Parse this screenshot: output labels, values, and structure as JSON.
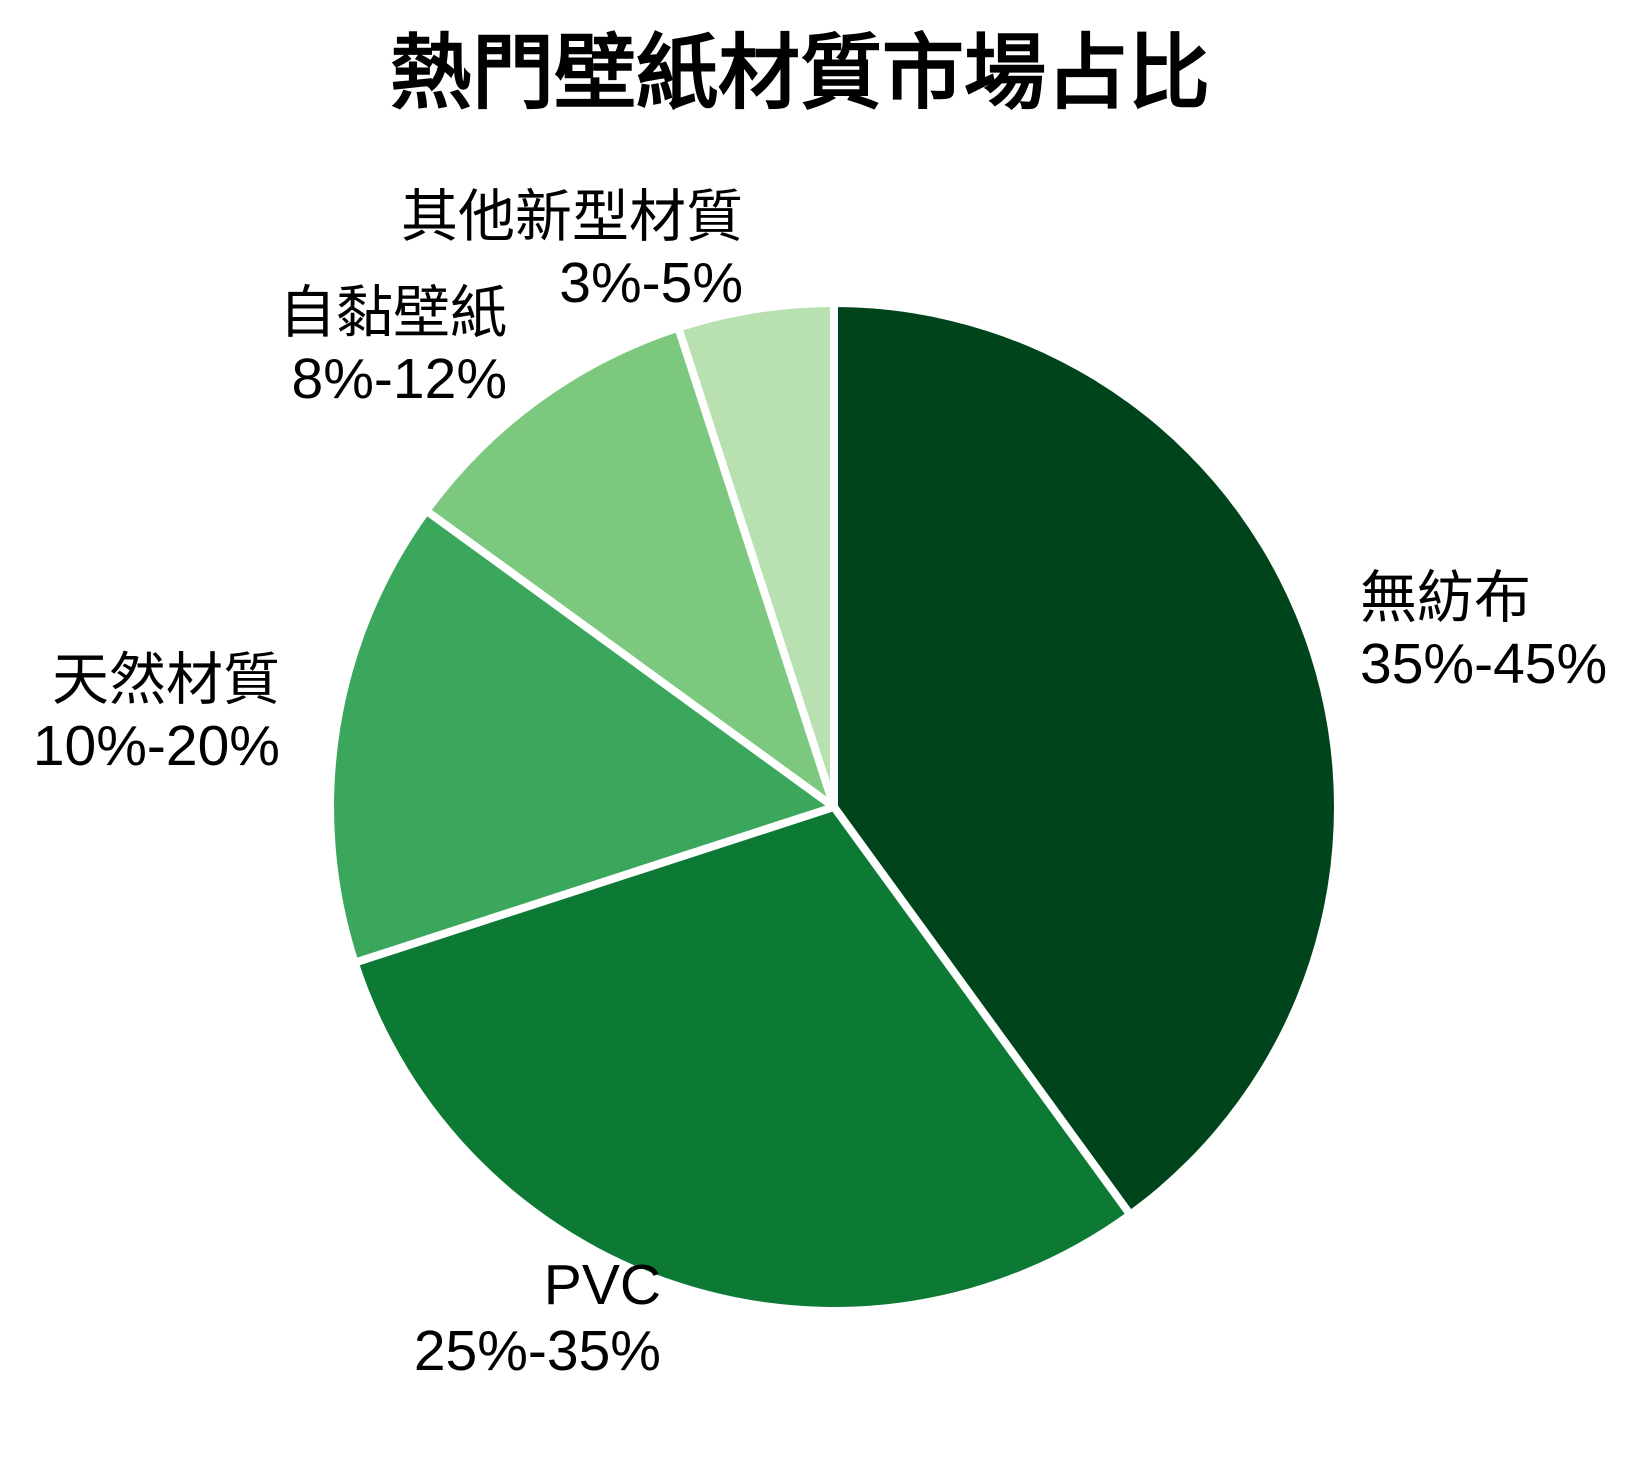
{
  "chart_data": {
    "type": "pie",
    "title": "熱門壁紙材質市場占比",
    "start_angle_deg": 0,
    "direction": "clockwise",
    "legend_position": "none",
    "background_color": "#ffffff",
    "divider_color": "#ffffff",
    "slices": [
      {
        "label": "無紡布",
        "range": "35%-45%",
        "value": 40,
        "color": "#00441b"
      },
      {
        "label": "PVC",
        "range": "25%-35%",
        "value": 30,
        "color": "#0c7a35"
      },
      {
        "label": "天然材質",
        "range": "10%-20%",
        "value": 15,
        "color": "#3ba75c"
      },
      {
        "label": "自黏壁紙",
        "range": "8%-12%",
        "value": 10,
        "color": "#7cc87e"
      },
      {
        "label": "其他新型材質",
        "range": "3%-5%",
        "value": 5,
        "color": "#b9e0b1"
      }
    ]
  }
}
